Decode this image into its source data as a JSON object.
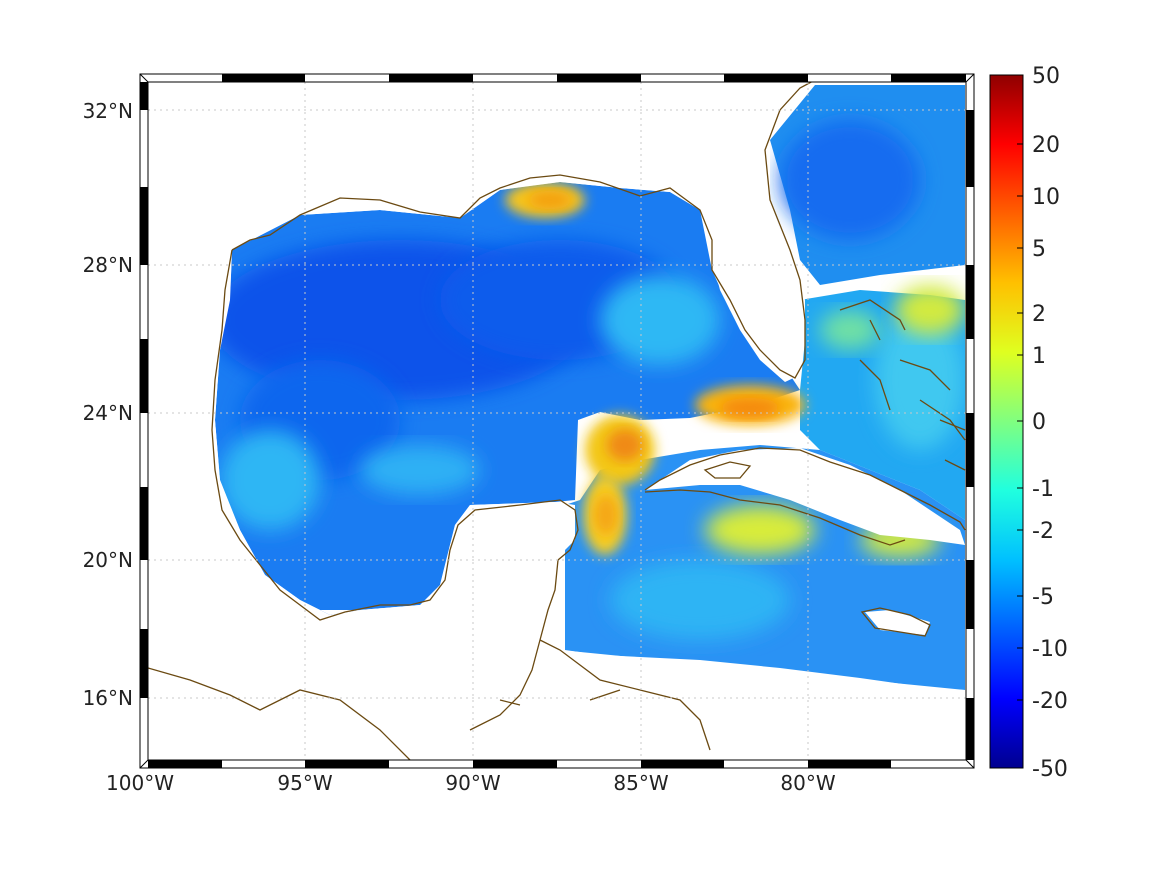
{
  "map": {
    "lon_labels": [
      "100°W",
      "95°W",
      "90°W",
      "85°W",
      "80°W"
    ],
    "lat_labels": [
      "32°N",
      "28°N",
      "24°N",
      "20°N",
      "16°N"
    ],
    "coastline_color": "#6b4a12",
    "grid": "dotted"
  },
  "colorbar": {
    "colormap": "jet",
    "tick_labels": [
      "50",
      "20",
      "10",
      "5",
      "2",
      "1",
      "0",
      "-1",
      "-2",
      "-5",
      "-10",
      "-20",
      "-50"
    ],
    "colors": [
      "#00008f",
      "#0000ff",
      "#0060ff",
      "#00c0ff",
      "#20ffdf",
      "#80ff80",
      "#dfff20",
      "#ffc000",
      "#ff6000",
      "#ff0000",
      "#8f0000"
    ]
  }
}
